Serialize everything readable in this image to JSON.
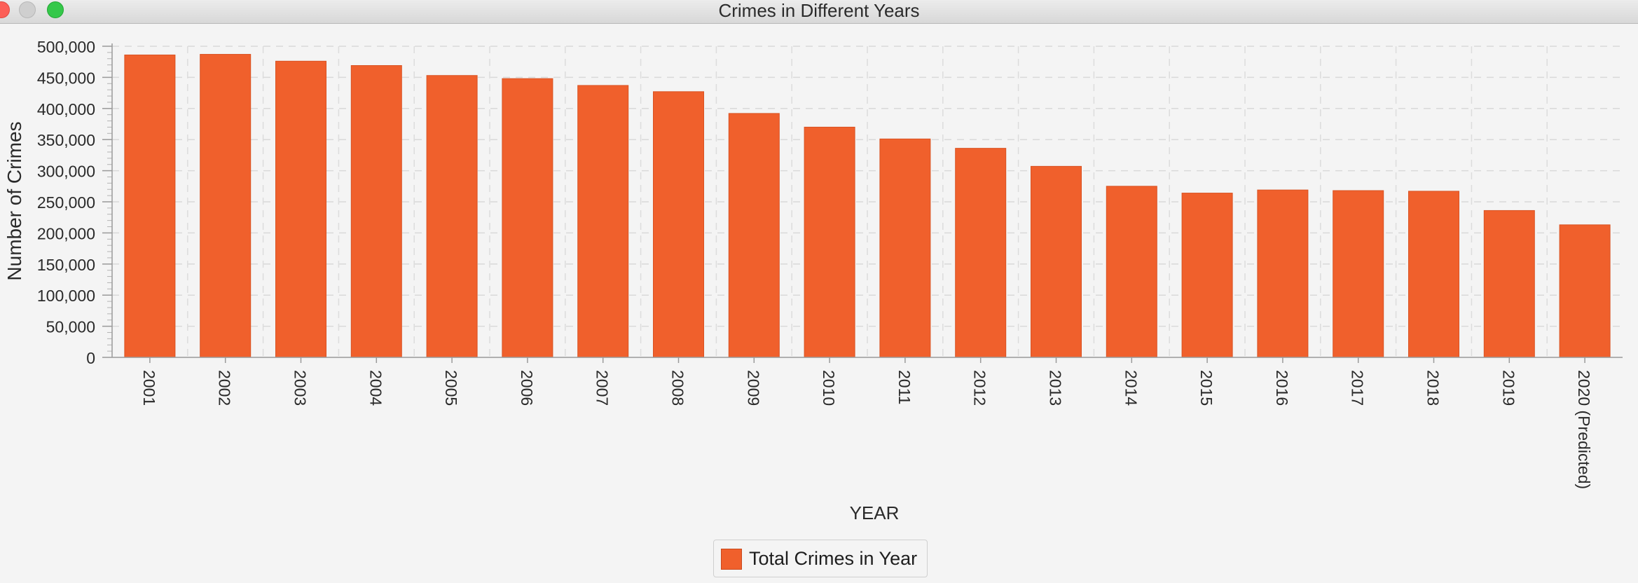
{
  "window": {
    "title": "Crimes in Different Years"
  },
  "legend": {
    "label": "Total Crimes in Year",
    "color": "#f0602c"
  },
  "chart_data": {
    "type": "bar",
    "xlabel": "YEAR",
    "ylabel": "Number of Crimes",
    "ylim": [
      0,
      500000
    ],
    "yticks": [
      "0",
      "50,000",
      "100,000",
      "150,000",
      "200,000",
      "250,000",
      "300,000",
      "350,000",
      "400,000",
      "450,000",
      "500,000"
    ],
    "grid": true,
    "legend_position": "bottom-center",
    "bar_color": "#f0602c",
    "categories": [
      "2001",
      "2002",
      "2003",
      "2004",
      "2005",
      "2006",
      "2007",
      "2008",
      "2009",
      "2010",
      "2011",
      "2012",
      "2013",
      "2014",
      "2015",
      "2016",
      "2017",
      "2018",
      "2019",
      "2020 (Predicted)"
    ],
    "series": [
      {
        "name": "Total Crimes in Year",
        "values": [
          486000,
          487000,
          476000,
          469000,
          453000,
          448000,
          437000,
          427000,
          392000,
          370000,
          351000,
          336000,
          307000,
          275000,
          264000,
          269000,
          268000,
          267000,
          236000,
          213000
        ]
      }
    ]
  }
}
